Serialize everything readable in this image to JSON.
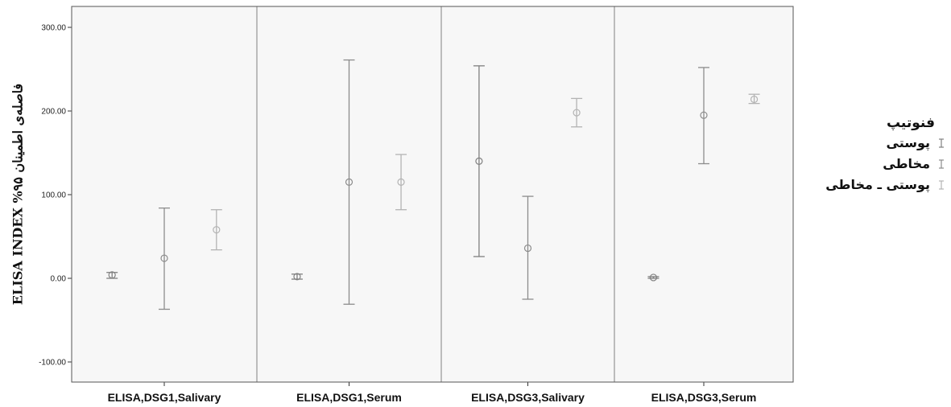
{
  "chart_data": {
    "type": "errorbar",
    "ylabel": "ELISA INDEX %۹۵ فاصله‌ی اطمینان",
    "ylim": [
      -120,
      310
    ],
    "yticks": [
      -100,
      0,
      100,
      200,
      300
    ],
    "ytick_labels": [
      "-100.00",
      "0.00",
      "100.00",
      "200.00",
      "300.00"
    ],
    "categories": [
      "ELISA,DSG1,Salivary",
      "ELISA,DSG1,Serum",
      "ELISA,DSG3,Salivary",
      "ELISA,DSG3,Serum"
    ],
    "legend_title": "فنوتیپ",
    "legend_position": "right",
    "grid": false,
    "series": [
      {
        "name": "پوستی",
        "color": "#808080",
        "mean": [
          4,
          2,
          140,
          1
        ],
        "lower": [
          0,
          -1,
          26,
          0
        ],
        "upper": [
          7,
          5,
          254,
          2
        ]
      },
      {
        "name": "مخاطی",
        "color": "#8c8c8c",
        "mean": [
          24,
          115,
          36,
          195
        ],
        "lower": [
          -37,
          -31,
          -25,
          137
        ],
        "upper": [
          84,
          261,
          98,
          252
        ]
      },
      {
        "name": "پوستی ـ مخاطی",
        "color": "#b3b3b3",
        "mean": [
          58,
          115,
          198,
          214
        ],
        "lower": [
          34,
          82,
          181,
          209
        ],
        "upper": [
          82,
          148,
          215,
          220
        ]
      }
    ]
  },
  "colors": {
    "panel_bg": "#f7f7f7",
    "frame": "#555555",
    "divider": "#808080"
  }
}
